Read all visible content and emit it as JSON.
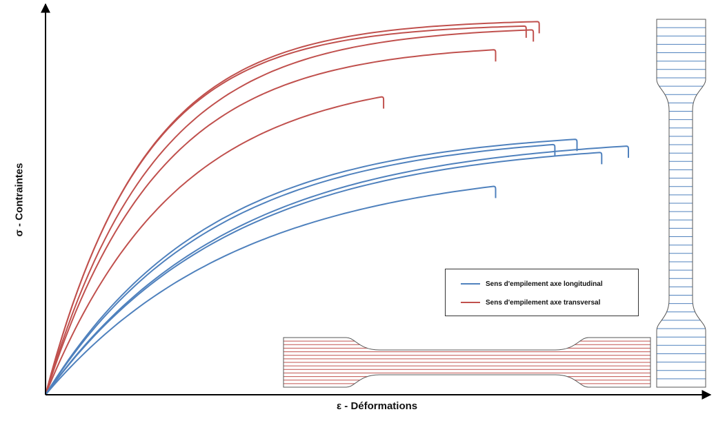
{
  "chart_data": {
    "type": "line",
    "title": "",
    "xlabel": "ε - Déformations",
    "ylabel": "σ - Contraintes",
    "xlim": [
      0,
      100
    ],
    "ylim": [
      0,
      100
    ],
    "grid": false,
    "legend_position": "bottom-right",
    "colors": {
      "longitudinal": "#4f81bd",
      "transversal": "#c0504d",
      "axis": "#000000"
    },
    "series": [
      {
        "name": "Sens d'empilement axe transversal",
        "color": "#c0504d",
        "curves": [
          {
            "x_end": 75.5,
            "y_max": 99.2,
            "k": 0.066
          },
          {
            "x_end": 73.5,
            "y_max": 98.0,
            "k": 0.067
          },
          {
            "x_end": 74.6,
            "y_max": 97.0,
            "k": 0.06
          },
          {
            "x_end": 68.8,
            "y_max": 91.7,
            "k": 0.058
          },
          {
            "x_end": 51.6,
            "y_max": 79.2,
            "k": 0.05
          }
        ]
      },
      {
        "name": "Sens d'empilement axe longitudinal",
        "color": "#4f81bd",
        "curves": [
          {
            "x_end": 81.3,
            "y_max": 67.9,
            "k": 0.04
          },
          {
            "x_end": 77.9,
            "y_max": 66.5,
            "k": 0.039
          },
          {
            "x_end": 89.2,
            "y_max": 66.1,
            "k": 0.035
          },
          {
            "x_end": 85.1,
            "y_max": 64.4,
            "k": 0.035
          },
          {
            "x_end": 68.8,
            "y_max": 55.4,
            "k": 0.033
          }
        ]
      }
    ],
    "legend": [
      {
        "label": "Sens d'empilement axe longitudinal",
        "color": "#4f81bd"
      },
      {
        "label": "Sens d'empilement axe transversal",
        "color": "#c0504d"
      }
    ]
  },
  "specimens": {
    "transversal": {
      "stripes": 14,
      "color": "#c0504d"
    },
    "longitudinal": {
      "stripes": 44,
      "color": "#4f81bd"
    }
  }
}
